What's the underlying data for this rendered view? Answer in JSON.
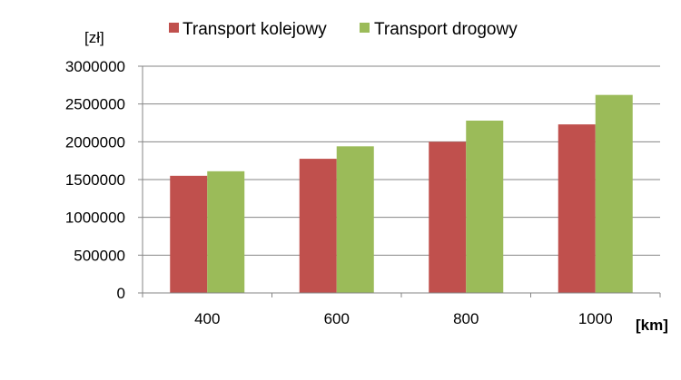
{
  "chart_data": {
    "type": "bar",
    "categories": [
      "400",
      "600",
      "800",
      "1000"
    ],
    "series": [
      {
        "name": "Transport kolejowy",
        "color": "#c0504d",
        "values": [
          1550000,
          1775000,
          2000000,
          2230000
        ]
      },
      {
        "name": "Transport drogowy",
        "color": "#9bbb59",
        "values": [
          1610000,
          1940000,
          2280000,
          2620000
        ]
      }
    ],
    "ylabel": "[zł]",
    "xlabel": "[km]",
    "ylim": [
      0,
      3000000
    ],
    "yticks": [
      "0",
      "500000",
      "1000000",
      "1500000",
      "2000000",
      "2500000",
      "3000000"
    ],
    "grid": true,
    "legend_position": "top"
  }
}
